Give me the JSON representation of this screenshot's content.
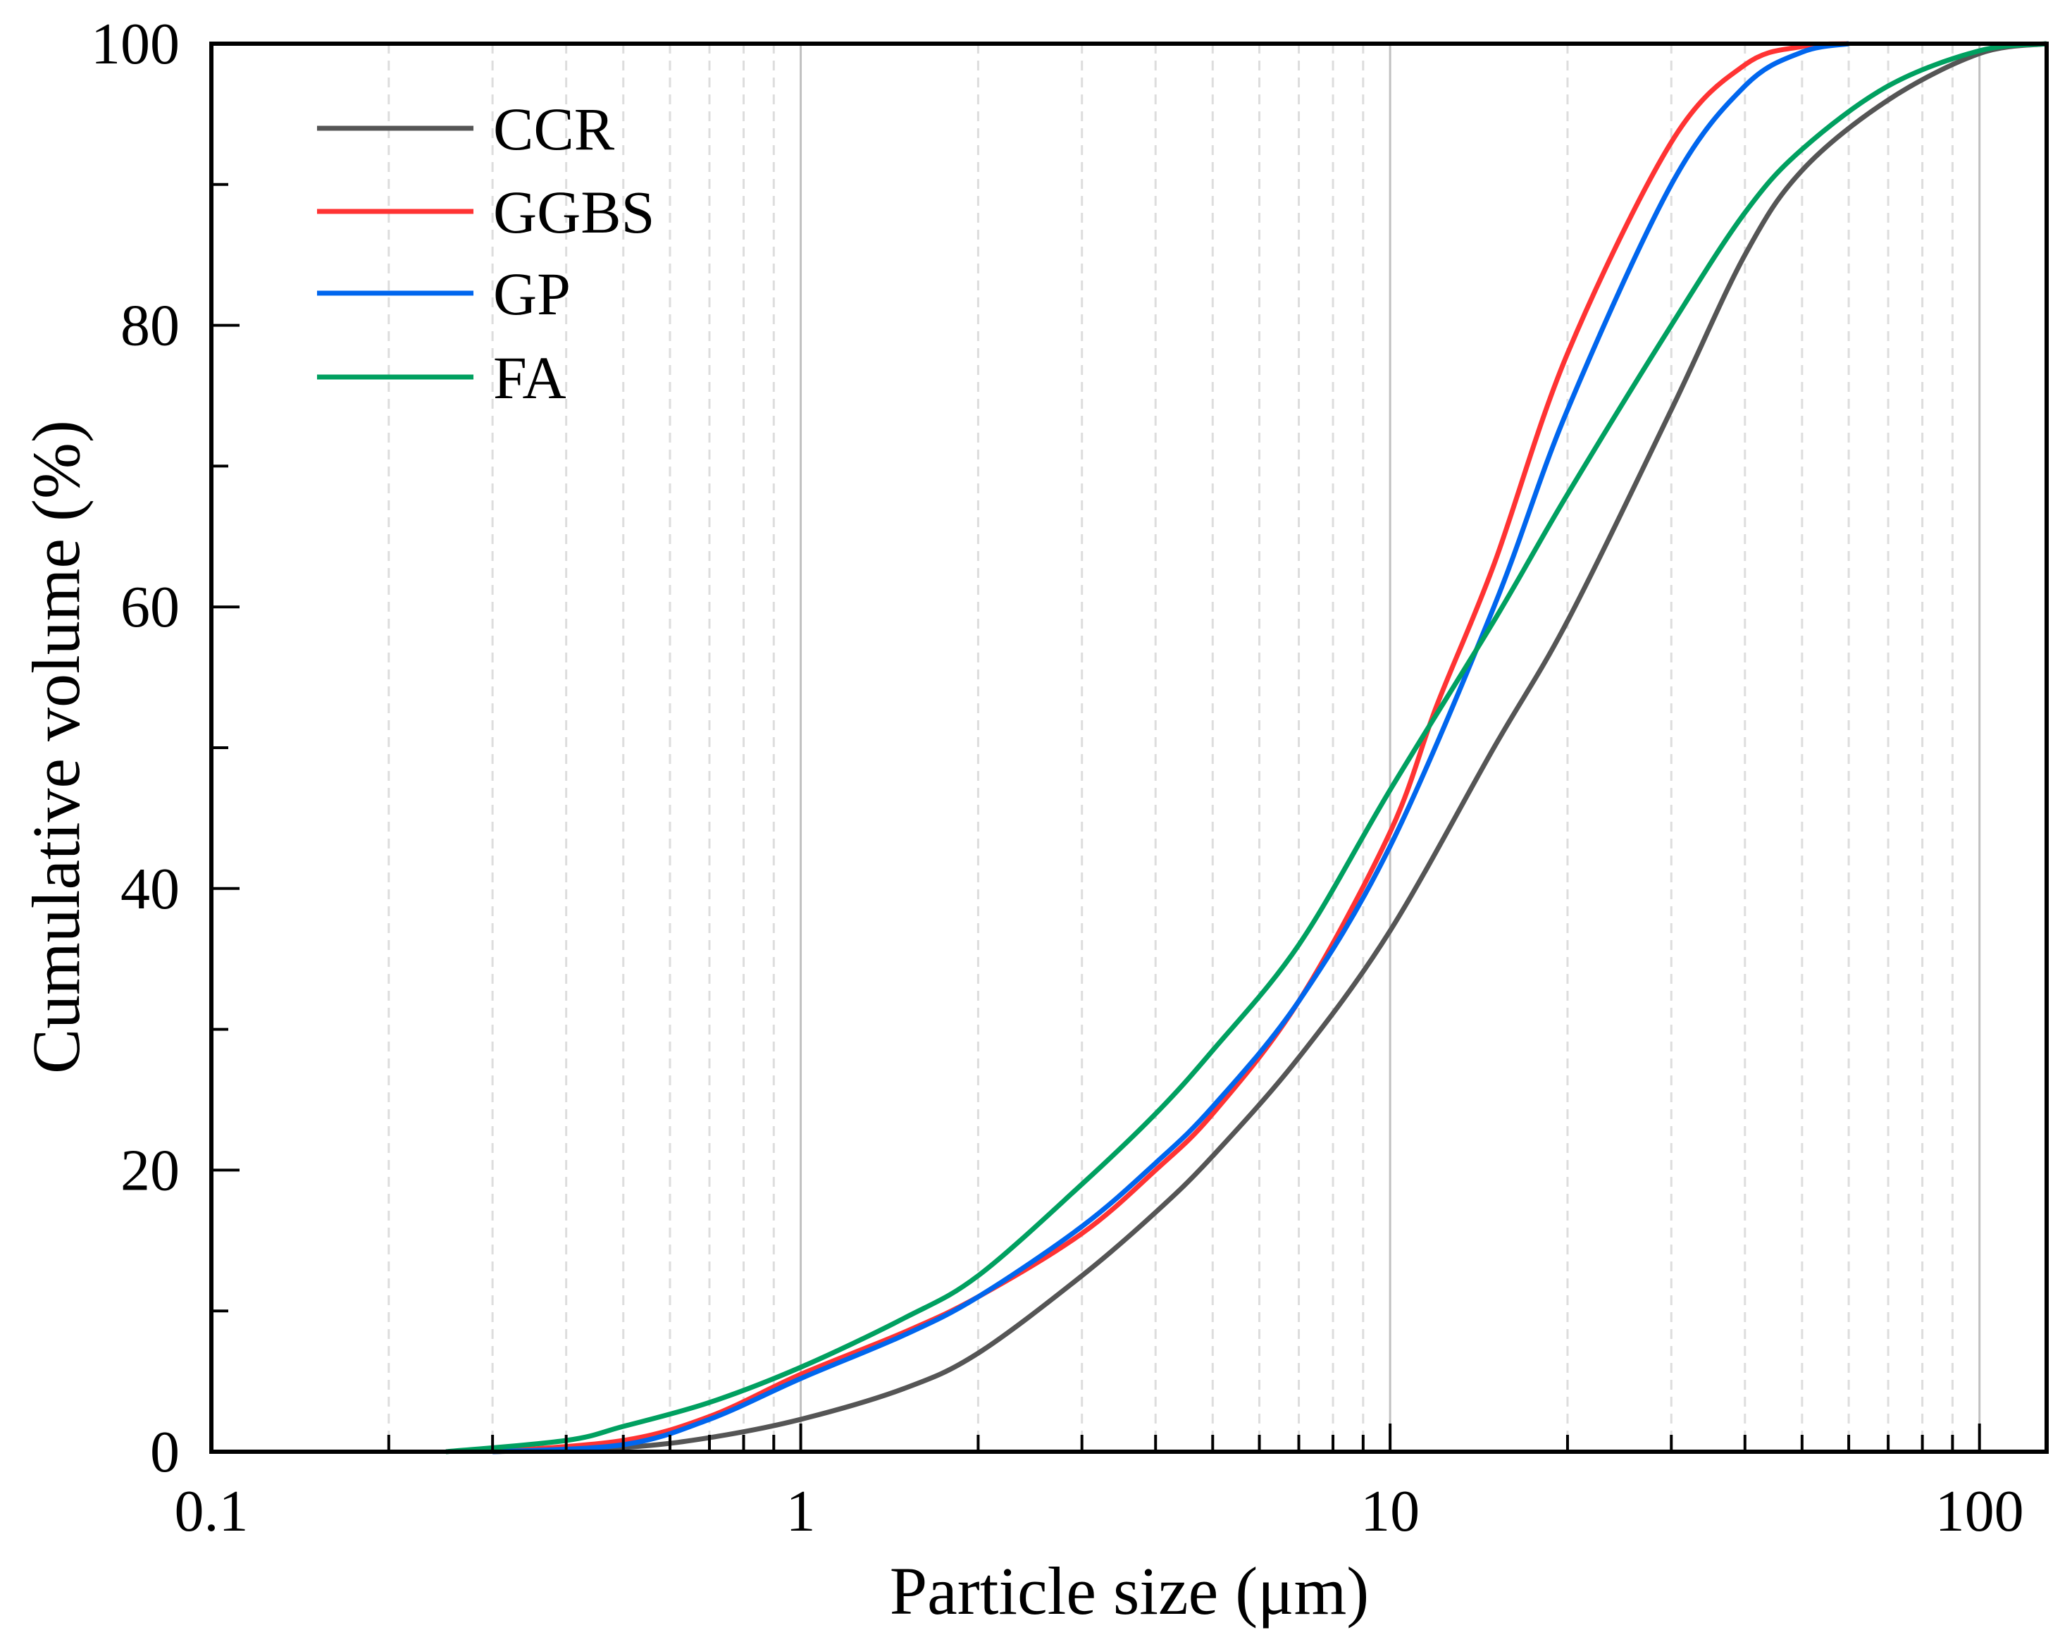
{
  "chart_data": {
    "type": "line",
    "title": "",
    "xlabel": "Particle size (μm)",
    "ylabel": "Cumulative volume (%)",
    "xscale": "log",
    "xlim": [
      0.1,
      130
    ],
    "ylim": [
      0,
      100
    ],
    "xticks": [
      0.1,
      1,
      10,
      100
    ],
    "xtick_labels": [
      "0.1",
      "1",
      "10",
      "100"
    ],
    "yticks": [
      0,
      20,
      40,
      60,
      80,
      100
    ],
    "ytick_labels": [
      "0",
      "20",
      "40",
      "60",
      "80",
      "100"
    ],
    "grid": "vertical (major solid, minor dashed)",
    "legend_position": "top-left",
    "series": [
      {
        "name": "CCR",
        "color": "#555555",
        "x": [
          0.3,
          0.5,
          0.7,
          1,
          1.5,
          2,
          3,
          4,
          5,
          7,
          10,
          15,
          20,
          30,
          40,
          50,
          70,
          100,
          130
        ],
        "y": [
          0,
          0.3,
          1,
          2.3,
          4.5,
          7,
          12.5,
          17,
          21,
          28,
          37,
          50,
          59,
          74,
          85,
          91,
          96,
          99.3,
          100
        ]
      },
      {
        "name": "GGBS",
        "color": "#ff3333",
        "x": [
          0.3,
          0.5,
          0.7,
          1,
          1.5,
          2,
          3,
          4,
          5,
          7,
          10,
          12,
          15,
          20,
          30,
          40,
          50,
          60
        ],
        "y": [
          0,
          0.8,
          2.5,
          5.5,
          8.5,
          11,
          15.5,
          20,
          24,
          32,
          44,
          53,
          63,
          78,
          93,
          98.5,
          99.8,
          100
        ]
      },
      {
        "name": "GP",
        "color": "#0066ee",
        "x": [
          0.3,
          0.5,
          0.7,
          1,
          1.5,
          2,
          3,
          4,
          5,
          7,
          10,
          15,
          20,
          30,
          40,
          50,
          60
        ],
        "y": [
          0,
          0.5,
          2.3,
          5.2,
          8.3,
          11,
          16,
          20.5,
          24.5,
          32,
          43,
          60,
          74,
          90,
          97,
          99.4,
          100
        ]
      },
      {
        "name": "FA",
        "color": "#00a060",
        "x": [
          0.25,
          0.4,
          0.5,
          0.7,
          1,
          1.5,
          2,
          3,
          4,
          5,
          7,
          10,
          15,
          20,
          30,
          40,
          50,
          70,
          100,
          130
        ],
        "y": [
          0,
          0.8,
          1.8,
          3.5,
          6,
          9.5,
          12.5,
          19,
          24,
          28.5,
          36,
          47,
          59,
          68,
          80,
          88,
          92.5,
          97,
          99.5,
          100
        ]
      }
    ]
  }
}
